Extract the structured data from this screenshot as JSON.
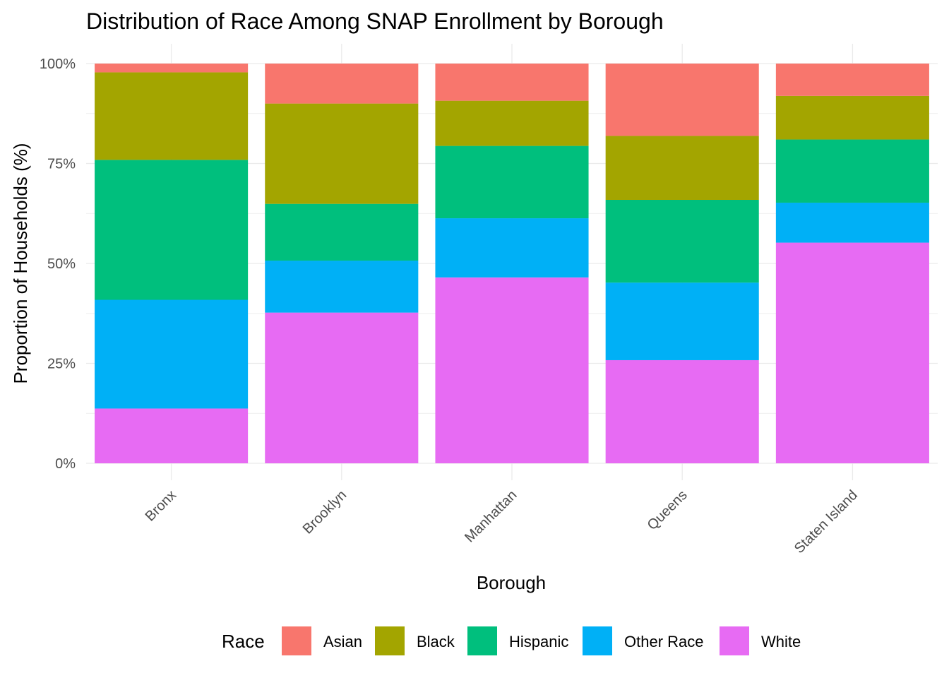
{
  "chart_data": {
    "type": "bar",
    "stacked": true,
    "title": "Distribution of Race Among SNAP Enrollment by Borough",
    "xlabel": "Borough",
    "ylabel": "Proportion of Households (%)",
    "ylim": [
      0,
      1
    ],
    "yticks": [
      0,
      0.25,
      0.5,
      0.75,
      1.0
    ],
    "ytick_labels": [
      "0%",
      "25%",
      "50%",
      "75%",
      "100%"
    ],
    "grid": true,
    "categories": [
      "Bronx",
      "Brooklyn",
      "Manhattan",
      "Queens",
      "Staten Island"
    ],
    "stack_order_bottom_to_top": [
      "White",
      "Other Race",
      "Hispanic",
      "Black",
      "Asian"
    ],
    "series": [
      {
        "name": "Asian",
        "color": "#F8766D",
        "values": [
          0.022,
          0.1,
          0.093,
          0.181,
          0.081
        ]
      },
      {
        "name": "Black",
        "color": "#A3A500",
        "values": [
          0.219,
          0.251,
          0.113,
          0.16,
          0.109
        ]
      },
      {
        "name": "Hispanic",
        "color": "#00BF7D",
        "values": [
          0.35,
          0.142,
          0.181,
          0.207,
          0.158
        ]
      },
      {
        "name": "Other Race",
        "color": "#00B0F6",
        "values": [
          0.272,
          0.13,
          0.148,
          0.194,
          0.1
        ]
      },
      {
        "name": "White",
        "color": "#E76BF3",
        "values": [
          0.137,
          0.377,
          0.465,
          0.258,
          0.552
        ]
      }
    ],
    "legend": {
      "title": "Race",
      "position": "bottom",
      "entries": [
        "Asian",
        "Black",
        "Hispanic",
        "Other Race",
        "White"
      ]
    }
  }
}
